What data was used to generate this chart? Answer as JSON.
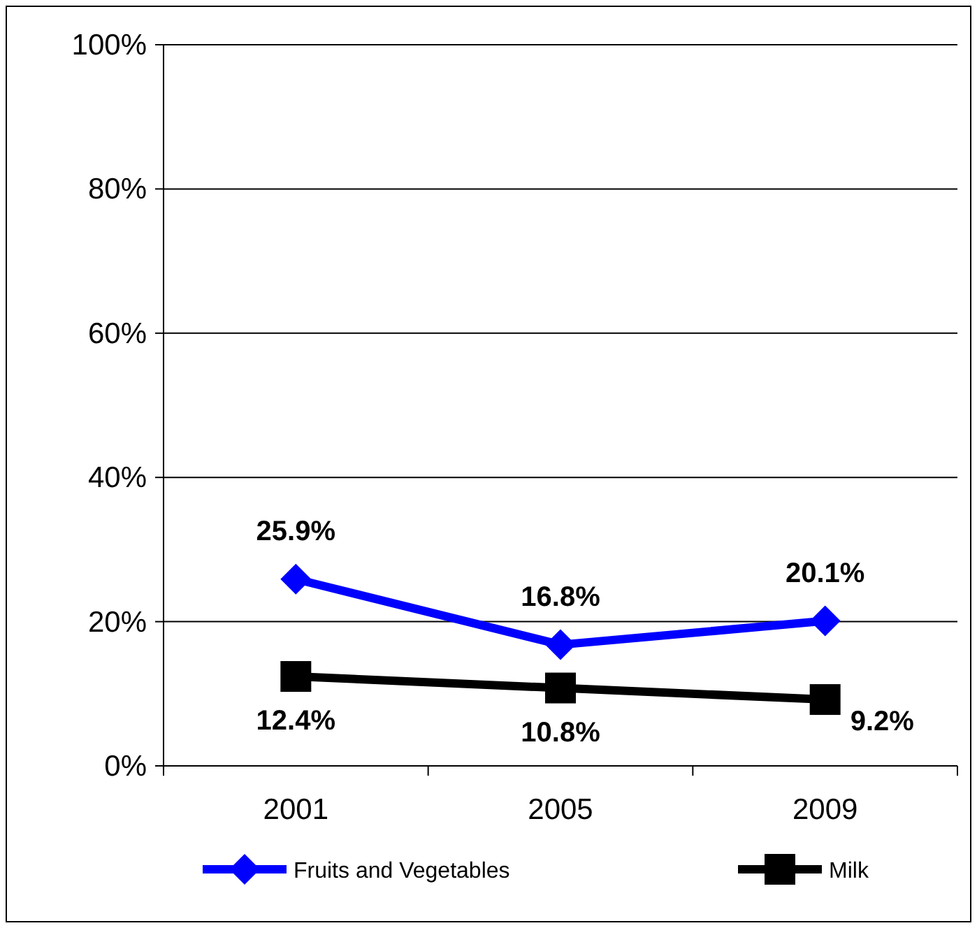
{
  "chart_data": {
    "type": "line",
    "categories": [
      "2001",
      "2005",
      "2009"
    ],
    "series": [
      {
        "name": "Fruits and Vegetables",
        "color": "#0000ff",
        "marker": "diamond",
        "values": [
          25.9,
          16.8,
          20.1
        ],
        "value_labels": [
          "25.9%",
          "16.8%",
          "20.1%"
        ]
      },
      {
        "name": "Milk",
        "color": "#000000",
        "marker": "square",
        "values": [
          12.4,
          10.8,
          9.2
        ],
        "value_labels": [
          "12.4%",
          "10.8%",
          "9.2%"
        ]
      }
    ],
    "ylim": [
      0,
      100
    ],
    "yticks": [
      {
        "value": 0,
        "label": "0%"
      },
      {
        "value": 20,
        "label": "20%"
      },
      {
        "value": 40,
        "label": "40%"
      },
      {
        "value": 60,
        "label": "60%"
      },
      {
        "value": 80,
        "label": "80%"
      },
      {
        "value": 100,
        "label": "100%"
      }
    ],
    "grid": "y",
    "legend": "bottom",
    "line_style": "solid"
  }
}
